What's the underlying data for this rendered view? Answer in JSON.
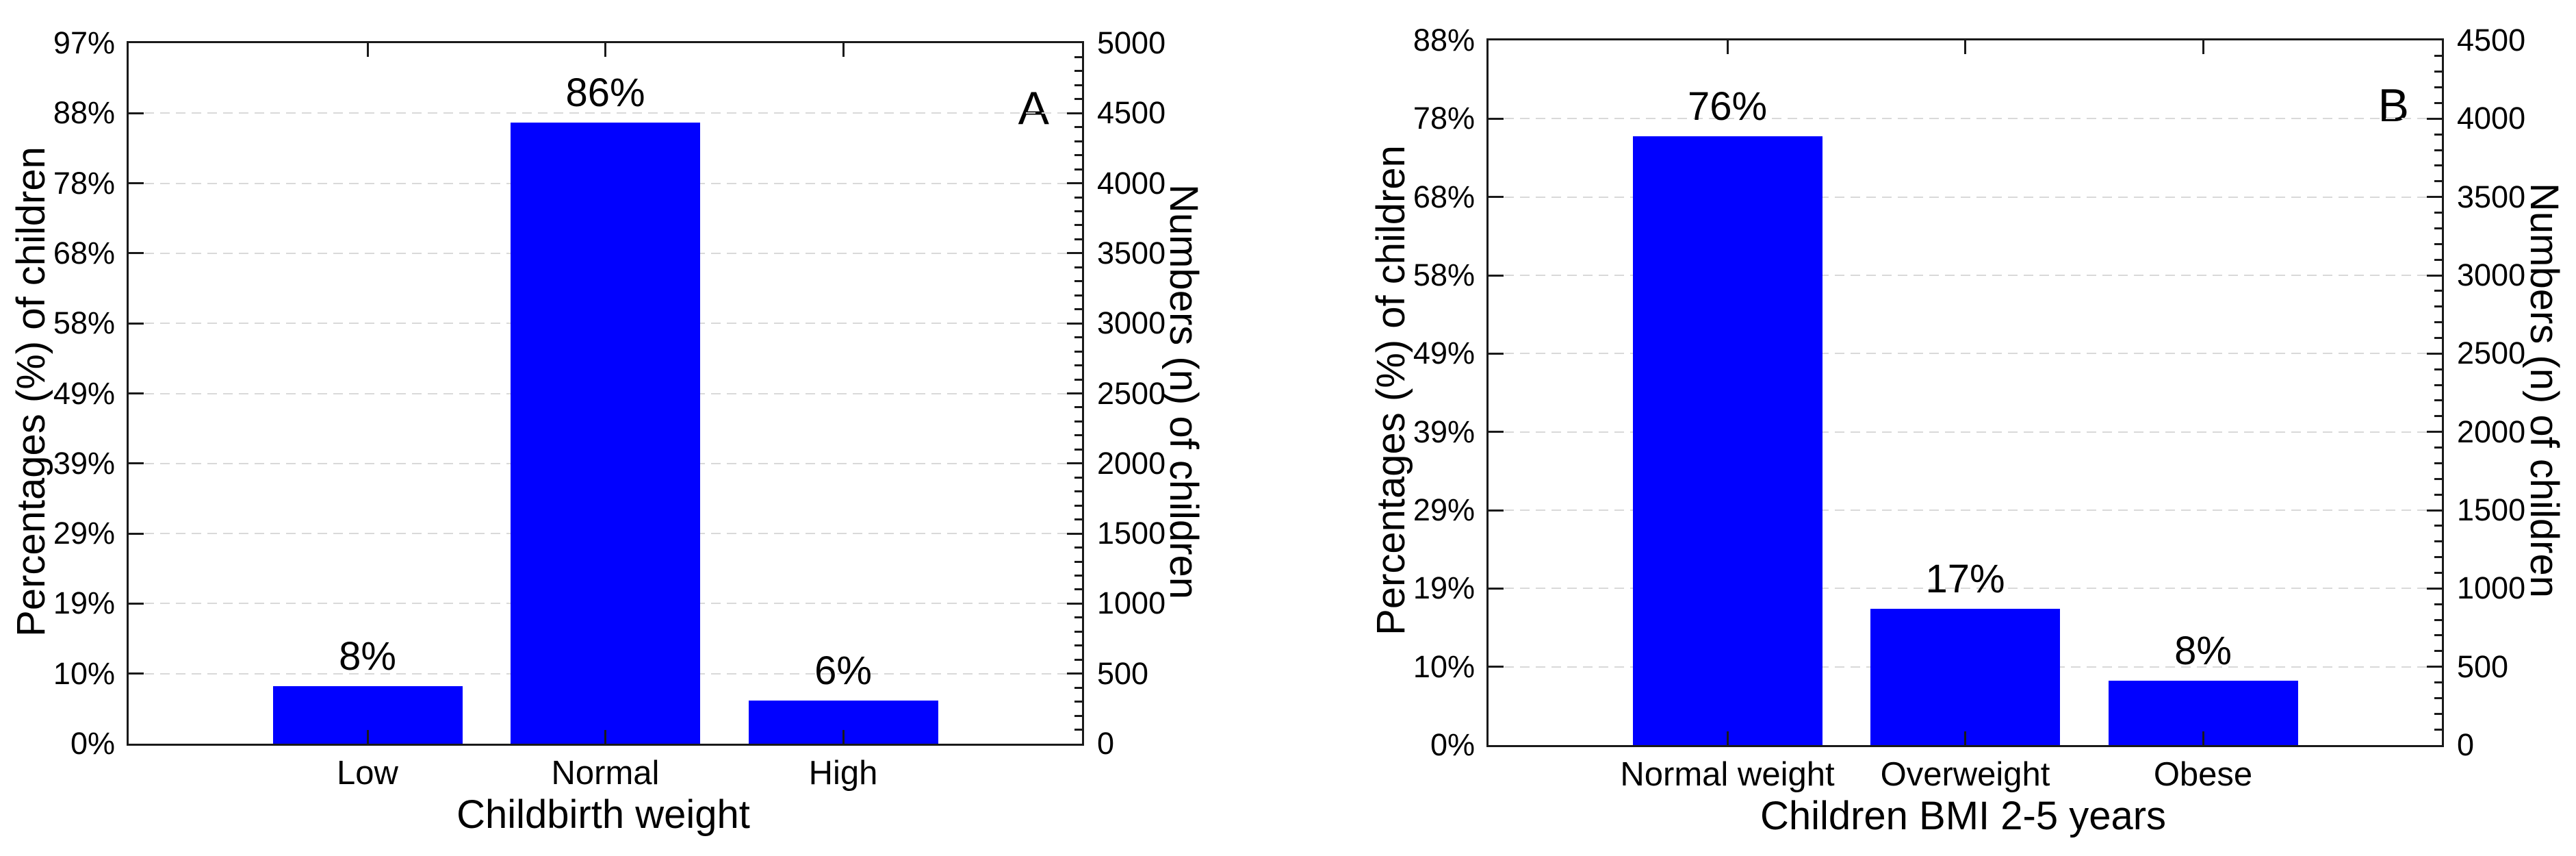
{
  "figure": {
    "bar_color": "#0101ff",
    "grid_color": "#d9d9d9",
    "axis_color": "#1a1a1a",
    "background_color": "#ffffff"
  },
  "chart_data": [
    {
      "type": "bar",
      "panel_label": "A",
      "xlabel": "Childbirth weight",
      "ylabel_left": "Percentages (%) of children",
      "ylabel_right": "Numbers (n) of children",
      "categories": [
        "Low",
        "Normal",
        "High"
      ],
      "values_percent": [
        8,
        86,
        6
      ],
      "values_n_est": [
        410,
        4430,
        310
      ],
      "bar_value_labels": [
        "8%",
        "86%",
        "6%"
      ],
      "left_ticks": [
        "97%",
        "88%",
        "78%",
        "68%",
        "58%",
        "49%",
        "39%",
        "29%",
        "19%",
        "10%",
        "0%"
      ],
      "right_ticks": [
        "5000",
        "4500",
        "4000",
        "3500",
        "3000",
        "2500",
        "2000",
        "1500",
        "1000",
        "500",
        "0"
      ],
      "left_axis_max_percent": 97,
      "right_axis_max": 5000,
      "right_axis_major_step": 500,
      "right_axis_minor_step": 100,
      "grid": "dashed horizontal",
      "legend": "none"
    },
    {
      "type": "bar",
      "panel_label": "B",
      "xlabel": "Children BMI 2-5 years",
      "ylabel_left": "Percentages (%) of children",
      "ylabel_right": "Numbers (n) of children",
      "categories": [
        "Normal weight",
        "Overweight",
        "Obese"
      ],
      "values_percent": [
        76,
        17,
        8
      ],
      "values_n_est": [
        3890,
        870,
        410
      ],
      "bar_value_labels": [
        "76%",
        "17%",
        "8%"
      ],
      "left_ticks": [
        "88%",
        "78%",
        "68%",
        "58%",
        "49%",
        "39%",
        "29%",
        "19%",
        "10%",
        "0%"
      ],
      "right_ticks": [
        "4500",
        "4000",
        "3500",
        "3000",
        "2500",
        "2000",
        "1500",
        "1000",
        "500",
        "0"
      ],
      "left_axis_max_percent": 88,
      "right_axis_max": 4500,
      "right_axis_major_step": 500,
      "right_axis_minor_step": 100,
      "grid": "dashed horizontal",
      "legend": "none"
    }
  ]
}
